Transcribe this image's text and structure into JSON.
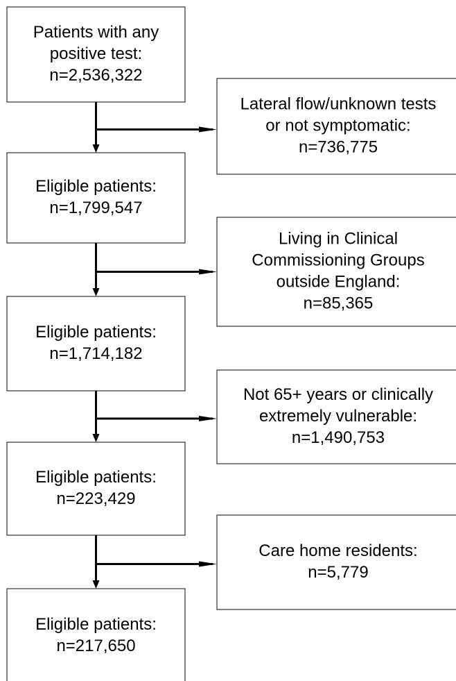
{
  "nodes": [
    {
      "lines": [
        "Patients with any",
        "positive test:",
        "n=2,536,322"
      ]
    },
    {
      "lines": [
        "Eligible patients:",
        "n=1,799,547"
      ]
    },
    {
      "lines": [
        "Eligible patients:",
        "n=1,714,182"
      ]
    },
    {
      "lines": [
        "Eligible patients:",
        "n=223,429"
      ]
    },
    {
      "lines": [
        "Eligible patients:",
        "n=217,650"
      ]
    }
  ],
  "exclusions": [
    {
      "lines": [
        "Lateral flow/unknown tests",
        "or not symptomatic:",
        "n=736,775"
      ]
    },
    {
      "lines": [
        "Living in Clinical",
        "Commissioning Groups",
        "outside England:",
        "n=85,365"
      ]
    },
    {
      "lines": [
        "Not 65+ years or clinically",
        "extremely vulnerable:",
        "n=1,490,753"
      ]
    },
    {
      "lines": [
        "Care home residents:",
        "n=5,779"
      ]
    }
  ]
}
